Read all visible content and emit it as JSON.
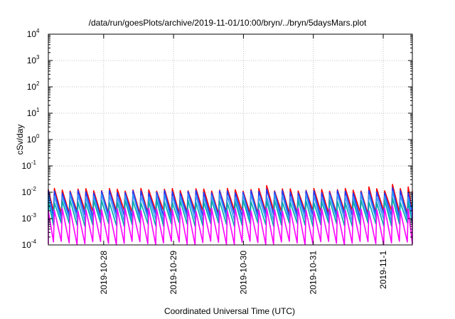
{
  "chart_data": {
    "type": "line",
    "title": "/data/run/goesPlots/archive/2019-11-01/10:00/bryn/../bryn/5daysMars.plot",
    "xlabel": "Coordinated Universal Time (UTC)",
    "ylabel": "cSv/day",
    "yscale": "log",
    "ylim": [
      0.0001,
      10000
    ],
    "xlim": [
      "2019-10-27 05:00",
      "2019-11-01 10:00"
    ],
    "y_ticks": [
      {
        "base": "10",
        "exp": "-4",
        "value": 0.0001
      },
      {
        "base": "10",
        "exp": "-3",
        "value": 0.001
      },
      {
        "base": "10",
        "exp": "-2",
        "value": 0.01
      },
      {
        "base": "10",
        "exp": "-1",
        "value": 0.1
      },
      {
        "base": "10",
        "exp": "0",
        "value": 1
      },
      {
        "base": "10",
        "exp": "1",
        "value": 10
      },
      {
        "base": "10",
        "exp": "2",
        "value": 100
      },
      {
        "base": "10",
        "exp": "3",
        "value": 1000
      },
      {
        "base": "10",
        "exp": "4",
        "value": 10000
      }
    ],
    "x_ticks": [
      {
        "label": "2019-10-28",
        "value": "2019-10-28 00:00"
      },
      {
        "label": "2019-10-29",
        "value": "2019-10-29 00:00"
      },
      {
        "label": "2019-10-30",
        "value": "2019-10-30 00:00"
      },
      {
        "label": "2019-10-31",
        "value": "2019-10-31 00:00"
      },
      {
        "label": "2019-11-1",
        "value": "2019-11-01 00:00"
      }
    ],
    "grid": true,
    "legend": "none",
    "series": [
      {
        "color": "#ff0000",
        "cycle_hours": 2.7,
        "peak": 0.0125,
        "trough": 0.0018,
        "peak_notes": {
          "2019-10-30 09:00": 0.018,
          "2019-10-31 19:00": 0.016,
          "2019-11-01 04:00": 0.02,
          "2019-11-01 09:00": 0.016
        }
      },
      {
        "color": "#1a3cff",
        "cycle_hours": 2.7,
        "peak": 0.0105,
        "trough": 0.0013,
        "peak_notes": {
          "2019-10-30 09:00": 0.013,
          "2019-11-01 04:00": 0.015
        }
      },
      {
        "color": "#3399ff",
        "cycle_hours": 2.7,
        "peak": 0.0075,
        "trough": 0.0009,
        "peak_notes": {
          "2019-11-01 04:00": 0.011
        }
      },
      {
        "color": "#00aaaa",
        "cycle_hours": 2.7,
        "peak": 0.0045,
        "trough": 0.0006,
        "peak_notes": {
          "2019-11-01 04:00": 0.006
        }
      },
      {
        "color": "#ff00ff",
        "cycle_hours": 2.7,
        "peak": 0.0022,
        "trough": 0.00012,
        "peak_notes": {
          "2019-11-01 04:00": 0.003
        }
      }
    ]
  }
}
